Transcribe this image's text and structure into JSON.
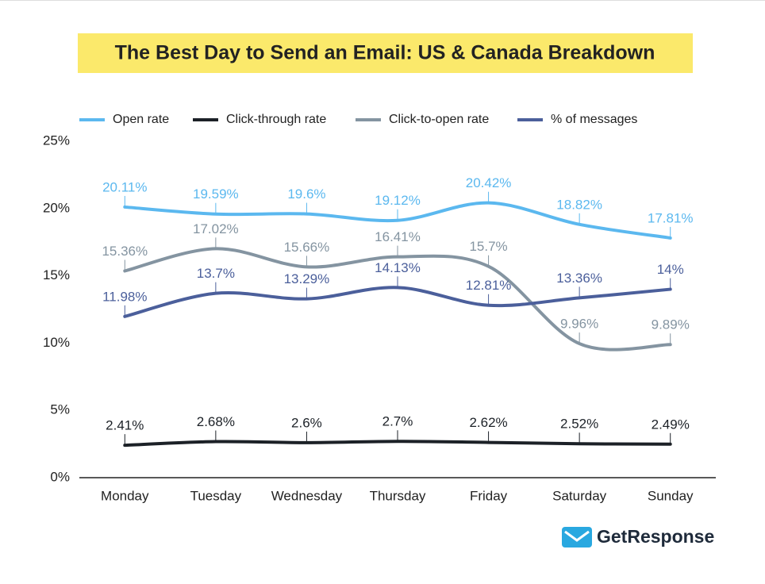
{
  "chart_data": {
    "type": "line",
    "title": "The Best Day to Send an Email: US & Canada Breakdown",
    "brand": "GetResponse",
    "categories": [
      "Monday",
      "Tuesday",
      "Wednesday",
      "Thursday",
      "Friday",
      "Saturday",
      "Sunday"
    ],
    "series": [
      {
        "name": "Open rate",
        "color": "#5bb8ef",
        "values": [
          20.11,
          19.59,
          19.6,
          19.12,
          20.42,
          18.82,
          17.81
        ],
        "value_labels": [
          "20.11%",
          "19.59%",
          "19.6%",
          "19.12%",
          "20.42%",
          "18.82%",
          "17.81%"
        ]
      },
      {
        "name": "Click-through rate",
        "color": "#1c2127",
        "values": [
          2.41,
          2.68,
          2.6,
          2.7,
          2.62,
          2.52,
          2.49
        ],
        "value_labels": [
          "2.41%",
          "2.68%",
          "2.6%",
          "2.7%",
          "2.62%",
          "2.52%",
          "2.49%"
        ]
      },
      {
        "name": "Click-to-open rate",
        "color": "#8494a1",
        "values": [
          15.36,
          17.02,
          15.66,
          16.41,
          15.7,
          9.96,
          9.89
        ],
        "value_labels": [
          "15.36%",
          "17.02%",
          "15.66%",
          "16.41%",
          "15.7%",
          "9.96%",
          "9.89%"
        ]
      },
      {
        "name": "% of messages",
        "color": "#4b5f9b",
        "values": [
          11.98,
          13.7,
          13.29,
          14.13,
          12.81,
          13.36,
          14
        ],
        "value_labels": [
          "11.98%",
          "13.7%",
          "13.29%",
          "14.13%",
          "12.81%",
          "13.36%",
          "14%"
        ]
      }
    ],
    "ylim": [
      0,
      25
    ],
    "yticks": [
      {
        "value": 0,
        "label": "0%"
      },
      {
        "value": 5,
        "label": "5%"
      },
      {
        "value": 10,
        "label": "10%"
      },
      {
        "value": 15,
        "label": "15%"
      },
      {
        "value": 20,
        "label": "20%"
      },
      {
        "value": 25,
        "label": "25%"
      }
    ],
    "grid": false,
    "legend": "top"
  }
}
